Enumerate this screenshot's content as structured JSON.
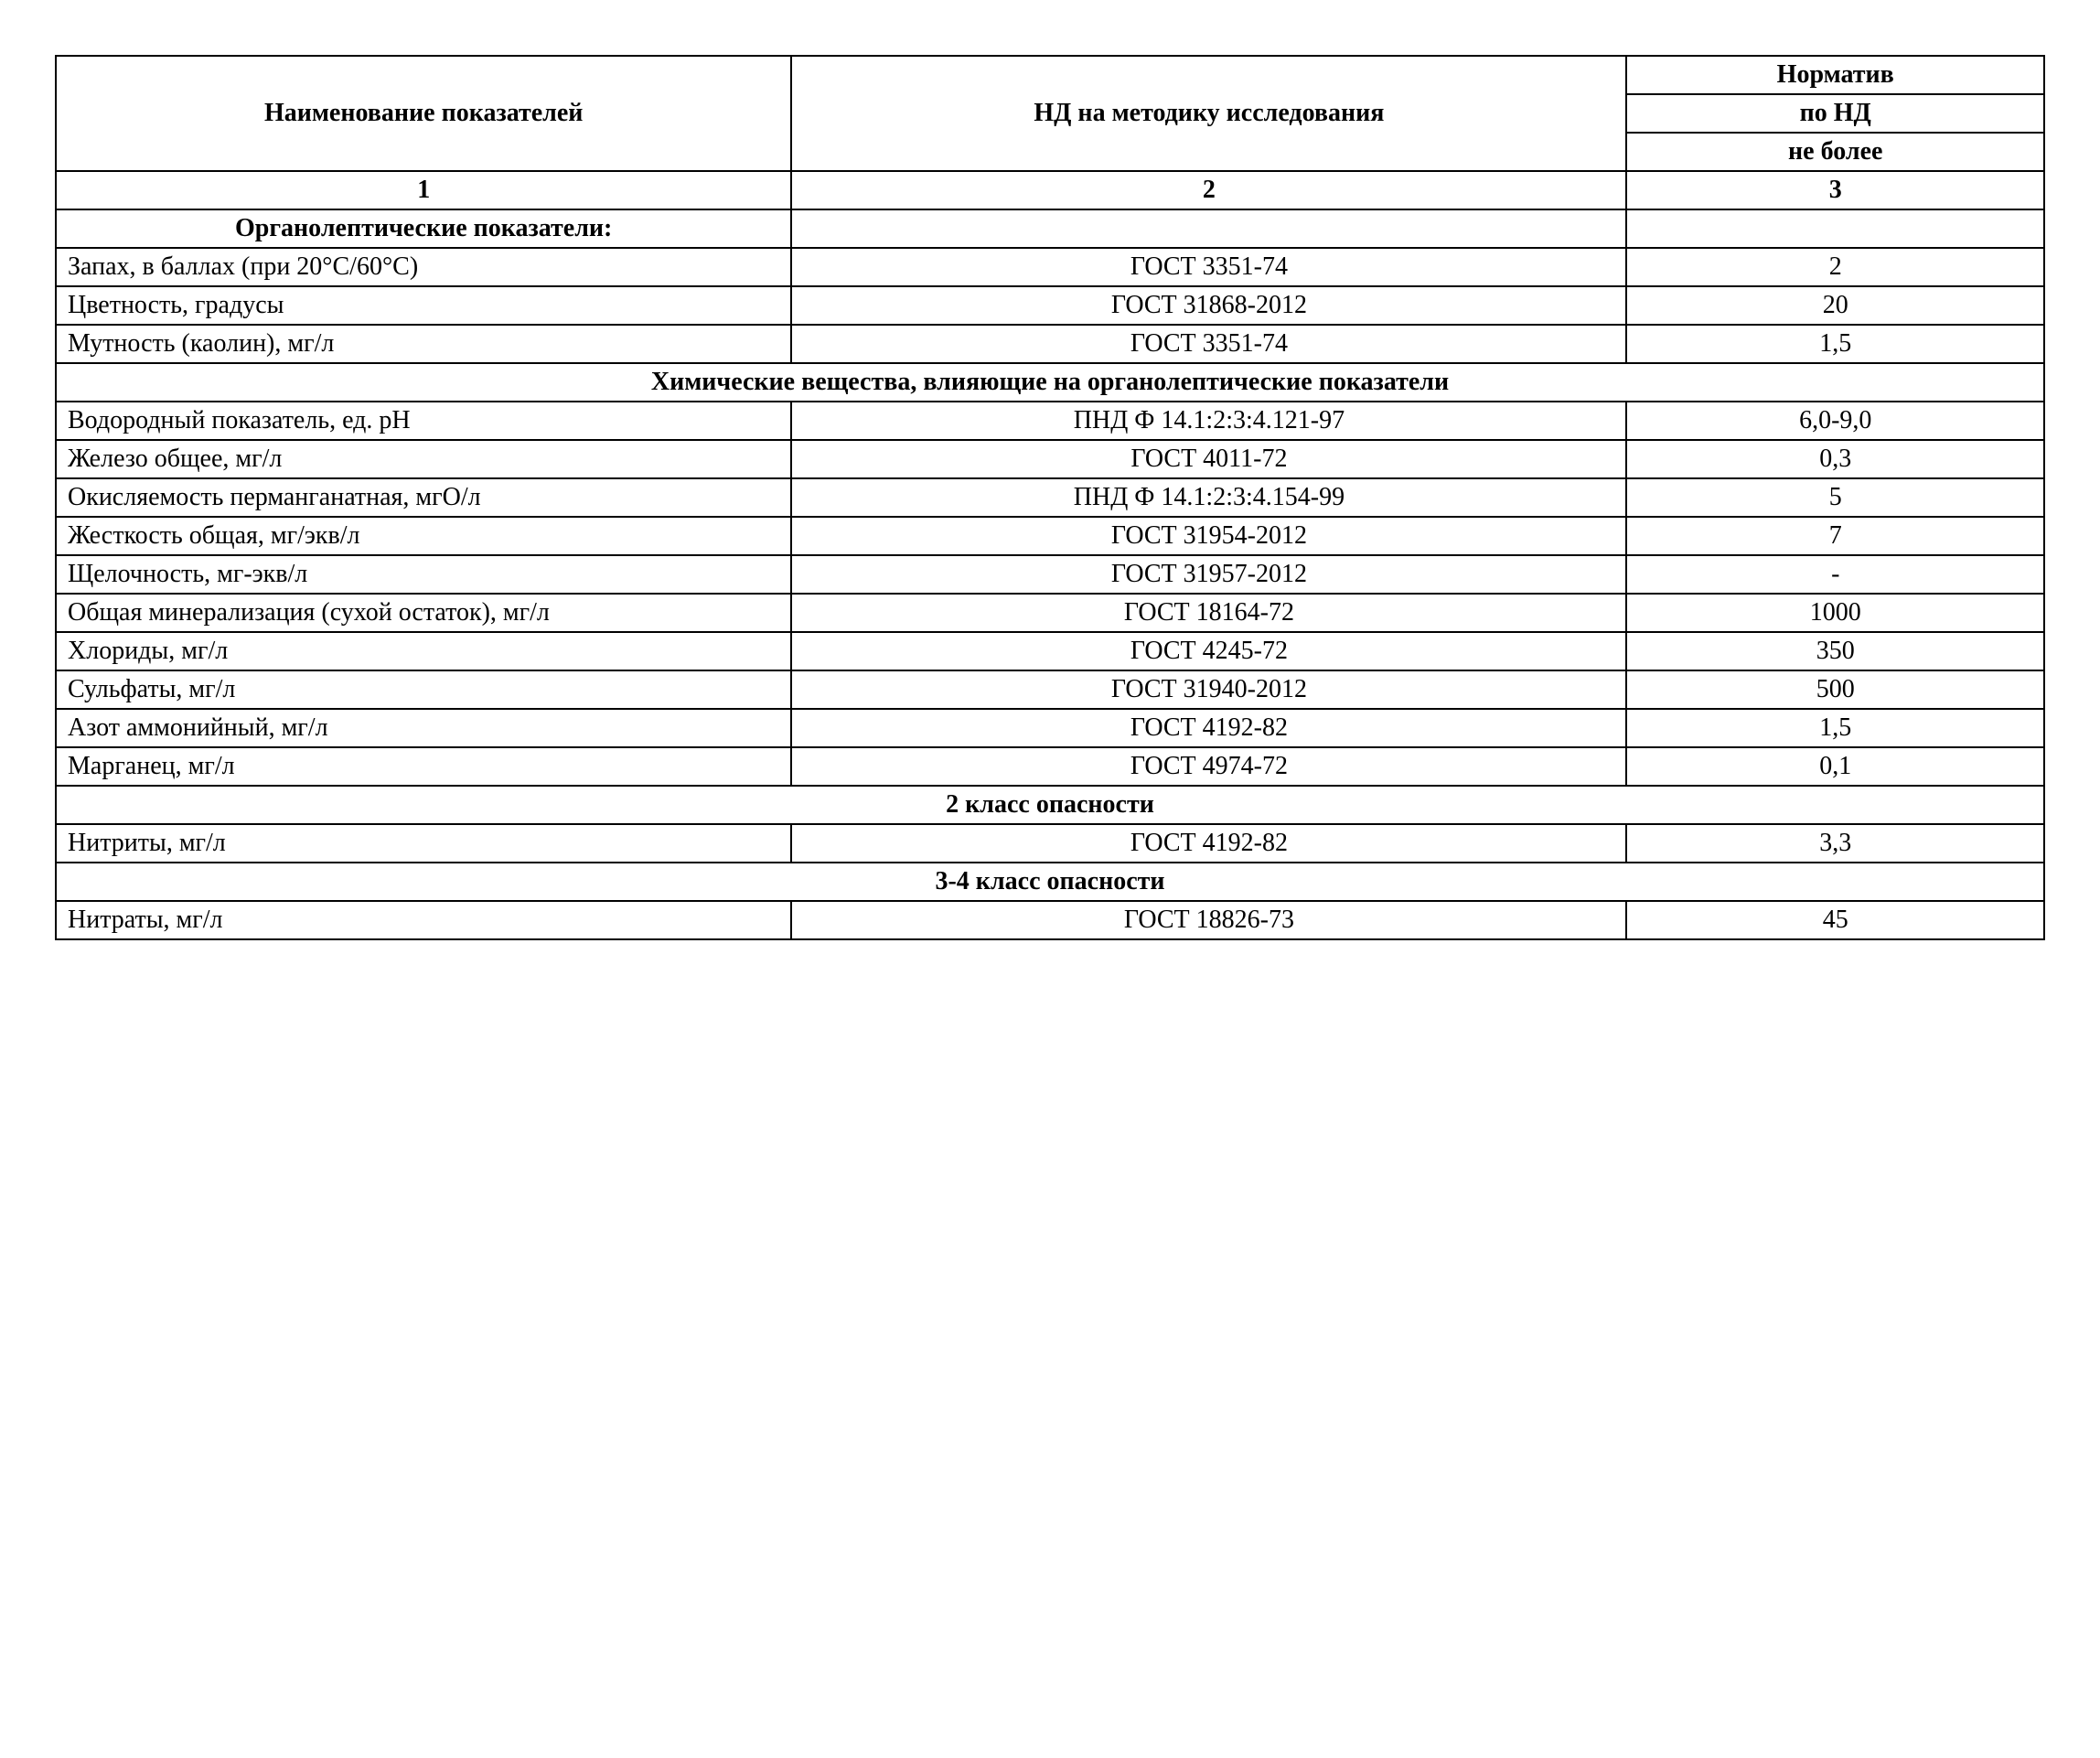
{
  "table": {
    "background_color": "#ffffff",
    "border_color": "#000000",
    "text_color": "#000000",
    "font_family": "Times New Roman",
    "font_size": 28,
    "header": {
      "col1": "Наименование показателей",
      "col2": "НД на методику исследования",
      "col3_line1": "Норматив",
      "col3_line2": "по НД",
      "col3_line3": "не более"
    },
    "col_numbers": {
      "c1": "1",
      "c2": "2",
      "c3": "3"
    },
    "section1_title": "Органолептические показатели:",
    "section1_rows": [
      {
        "name": "Запах, в баллах (при 20°С/60°С)",
        "method": "ГОСТ 3351-74",
        "norm": "2"
      },
      {
        "name": "Цветность, градусы",
        "method": "ГОСТ 31868-2012",
        "norm": "20"
      },
      {
        "name": "Мутность (каолин), мг/л",
        "method": "ГОСТ 3351-74",
        "norm": "1,5"
      }
    ],
    "section2_title": "Химические вещества, влияющие на органолептические показатели",
    "section2_rows": [
      {
        "name": "Водородный показатель, ед. рН",
        "method": "ПНД Ф 14.1:2:3:4.121-97",
        "norm": "6,0-9,0"
      },
      {
        "name": "Железо общее, мг/л",
        "method": "ГОСТ 4011-72",
        "norm": "0,3"
      },
      {
        "name": "Окисляемость перманганатная, мгО/л",
        "method": "ПНД Ф 14.1:2:3:4.154-99",
        "norm": "5"
      },
      {
        "name": "Жесткость общая, мг/экв/л",
        "method": "ГОСТ 31954-2012",
        "norm": "7"
      },
      {
        "name": "Щелочность, мг-экв/л",
        "method": "ГОСТ 31957-2012",
        "norm": "-"
      },
      {
        "name": "Общая минерализация (сухой остаток), мг/л",
        "method": "ГОСТ 18164-72",
        "norm": "1000"
      },
      {
        "name": "Хлориды, мг/л",
        "method": "ГОСТ 4245-72",
        "norm": "350"
      },
      {
        "name": "Сульфаты, мг/л",
        "method": "ГОСТ 31940-2012",
        "norm": "500"
      },
      {
        "name": "Азот аммонийный, мг/л",
        "method": "ГОСТ 4192-82",
        "norm": "1,5"
      },
      {
        "name": "Марганец, мг/л",
        "method": "ГОСТ 4974-72",
        "norm": "0,1"
      }
    ],
    "section3_title": "2 класс опасности",
    "section3_rows": [
      {
        "name": "Нитриты, мг/л",
        "method": "ГОСТ 4192-82",
        "norm": "3,3"
      }
    ],
    "section4_title": "3-4 класс опасности",
    "section4_rows": [
      {
        "name": "Нитраты, мг/л",
        "method": "ГОСТ 18826-73",
        "norm": "45"
      }
    ]
  }
}
